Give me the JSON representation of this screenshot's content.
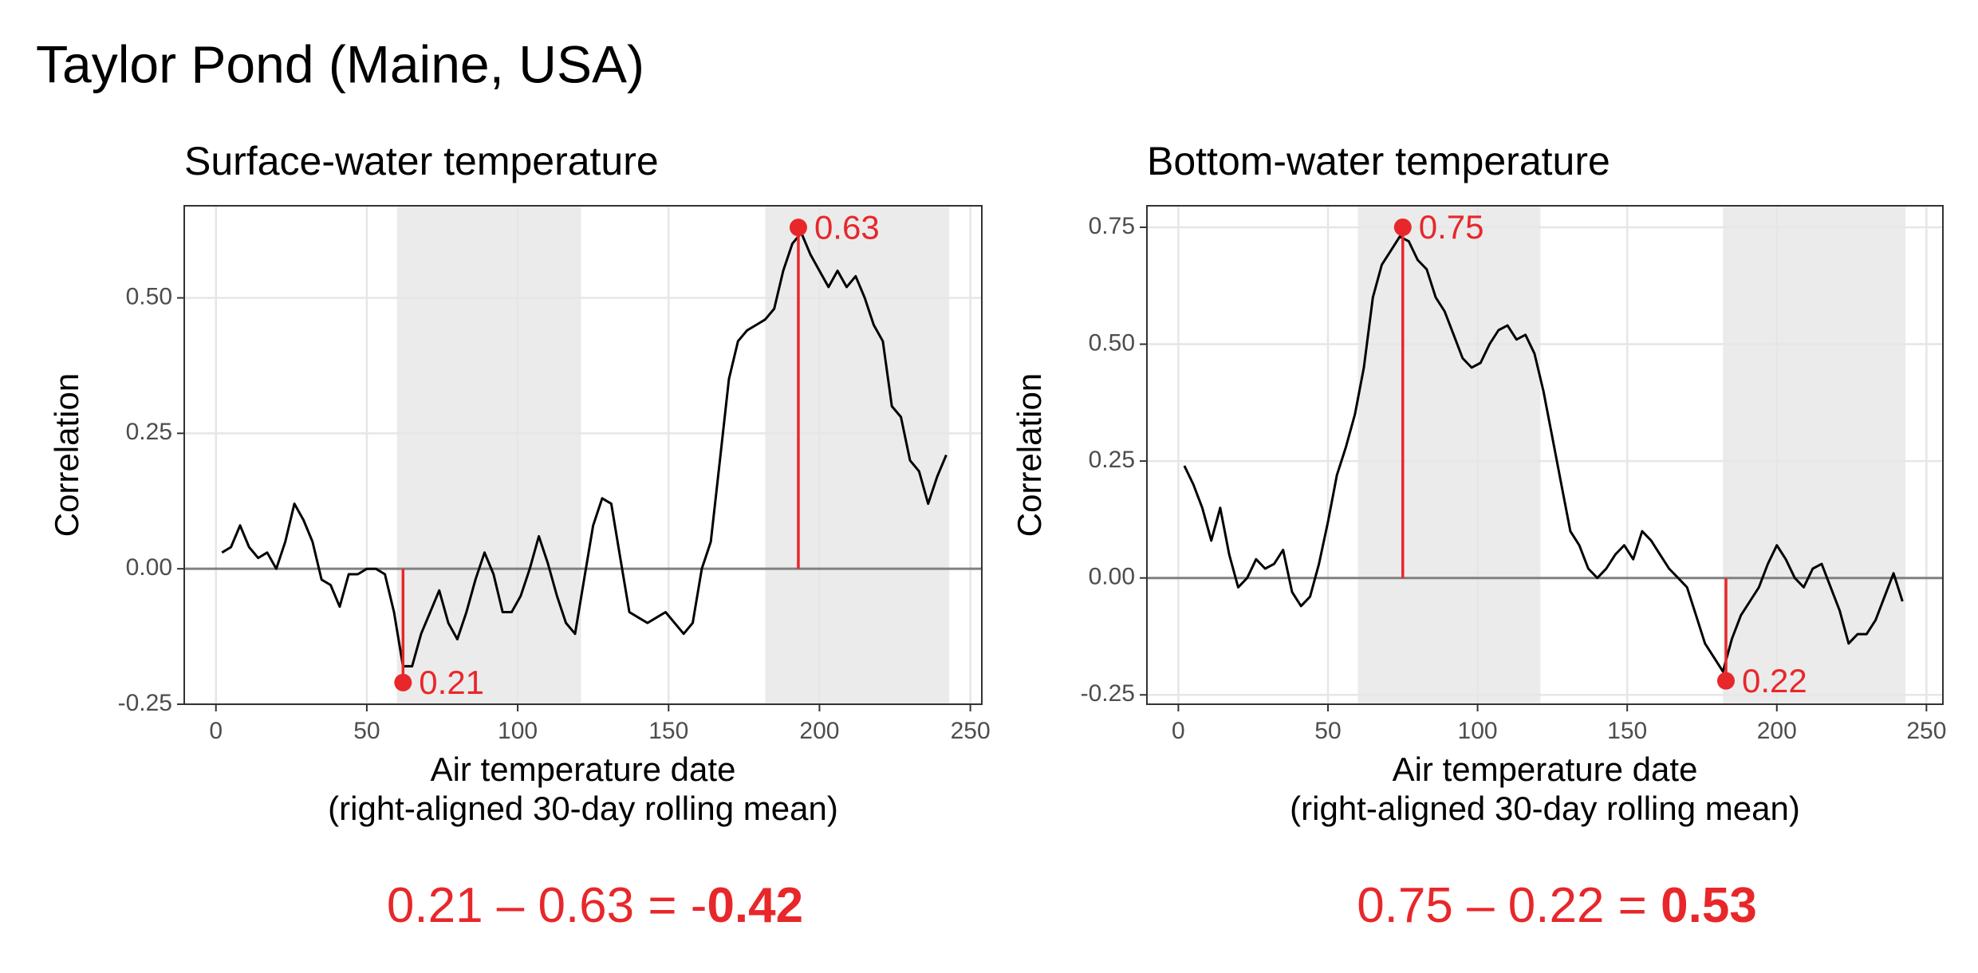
{
  "title": "Taylor Pond (Maine, USA)",
  "chart_data": [
    {
      "type": "line",
      "title": "Surface-water temperature",
      "xlabel": [
        "Air temperature date",
        "(right-aligned 30-day rolling mean)"
      ],
      "ylabel": "Correlation",
      "x": [
        2,
        5,
        8,
        11,
        14,
        17,
        20,
        23,
        26,
        29,
        32,
        35,
        38,
        41,
        44,
        47,
        50,
        53,
        56,
        59,
        62,
        65,
        68,
        71,
        74,
        77,
        80,
        83,
        86,
        89,
        92,
        95,
        98,
        101,
        104,
        107,
        110,
        113,
        116,
        119,
        122,
        125,
        128,
        131,
        134,
        137,
        140,
        143,
        146,
        149,
        152,
        155,
        158,
        161,
        164,
        167,
        170,
        173,
        176,
        179,
        182,
        185,
        188,
        191,
        194,
        197,
        200,
        203,
        206,
        209,
        212,
        215,
        218,
        221,
        224,
        227,
        230,
        233,
        236,
        239,
        242
      ],
      "values": [
        0.03,
        0.04,
        0.08,
        0.04,
        0.02,
        0.03,
        0.0,
        0.05,
        0.12,
        0.09,
        0.05,
        -0.02,
        -0.03,
        -0.07,
        -0.01,
        -0.01,
        0.0,
        0.0,
        -0.01,
        -0.08,
        -0.18,
        -0.18,
        -0.12,
        -0.08,
        -0.04,
        -0.1,
        -0.13,
        -0.08,
        -0.02,
        0.03,
        -0.01,
        -0.08,
        -0.08,
        -0.05,
        0.0,
        0.06,
        0.01,
        -0.05,
        -0.1,
        -0.12,
        -0.02,
        0.08,
        0.13,
        0.12,
        0.02,
        -0.08,
        -0.09,
        -0.1,
        -0.09,
        -0.08,
        -0.1,
        -0.12,
        -0.1,
        0.0,
        0.05,
        0.2,
        0.35,
        0.42,
        0.44,
        0.45,
        0.46,
        0.48,
        0.55,
        0.6,
        0.62,
        0.58,
        0.55,
        0.52,
        0.55,
        0.52,
        0.54,
        0.5,
        0.45,
        0.42,
        0.3,
        0.28,
        0.2,
        0.18,
        0.12,
        0.17,
        0.21
      ],
      "color": "#000000",
      "highlight_color": "#e8272a",
      "xlim": [
        -10.5,
        253.8
      ],
      "ylim": [
        -0.25,
        0.67
      ],
      "xticks": [
        0,
        50,
        100,
        150,
        200,
        250
      ],
      "yticks": [
        {
          "value": -0.25,
          "label": "-0.25"
        },
        {
          "value": 0,
          "label": "0.00"
        },
        {
          "value": 0.25,
          "label": "0.25"
        },
        {
          "value": 0.5,
          "label": "0.50"
        }
      ],
      "grid": true,
      "hline": 0,
      "shaded": [
        [
          60,
          121
        ],
        [
          182,
          243
        ]
      ],
      "highlights": [
        {
          "x": 62,
          "value": -0.21,
          "label": "0.21"
        },
        {
          "x": 193,
          "value": 0.63,
          "label": "0.63"
        }
      ],
      "equation": {
        "text": "0.21 – 0.63 = -",
        "result": "0.42"
      }
    },
    {
      "type": "line",
      "title": "Bottom-water temperature",
      "xlabel": [
        "Air temperature date",
        "(right-aligned 30-day rolling mean)"
      ],
      "ylabel": "Correlation",
      "x": [
        2,
        5,
        8,
        11,
        14,
        17,
        20,
        23,
        26,
        29,
        32,
        35,
        38,
        41,
        44,
        47,
        50,
        53,
        56,
        59,
        62,
        65,
        68,
        71,
        74,
        77,
        80,
        83,
        86,
        89,
        92,
        95,
        98,
        101,
        104,
        107,
        110,
        113,
        116,
        119,
        122,
        125,
        128,
        131,
        134,
        137,
        140,
        143,
        146,
        149,
        152,
        155,
        158,
        161,
        164,
        167,
        170,
        173,
        176,
        179,
        182,
        185,
        188,
        191,
        194,
        197,
        200,
        203,
        206,
        209,
        212,
        215,
        218,
        221,
        224,
        227,
        230,
        233,
        236,
        239,
        242
      ],
      "values": [
        0.24,
        0.2,
        0.15,
        0.08,
        0.15,
        0.05,
        -0.02,
        0.0,
        0.04,
        0.02,
        0.03,
        0.06,
        -0.03,
        -0.06,
        -0.04,
        0.03,
        0.12,
        0.22,
        0.28,
        0.35,
        0.45,
        0.6,
        0.67,
        0.7,
        0.73,
        0.72,
        0.68,
        0.66,
        0.6,
        0.57,
        0.52,
        0.47,
        0.45,
        0.46,
        0.5,
        0.53,
        0.54,
        0.51,
        0.52,
        0.48,
        0.4,
        0.3,
        0.2,
        0.1,
        0.07,
        0.02,
        0.0,
        0.02,
        0.05,
        0.07,
        0.04,
        0.1,
        0.08,
        0.05,
        0.02,
        0.0,
        -0.02,
        -0.08,
        -0.14,
        -0.17,
        -0.2,
        -0.13,
        -0.08,
        -0.05,
        -0.02,
        0.03,
        0.07,
        0.04,
        0.0,
        -0.02,
        0.02,
        0.03,
        -0.02,
        -0.07,
        -0.14,
        -0.12,
        -0.12,
        -0.09,
        -0.04,
        0.01,
        -0.05
      ],
      "color": "#000000",
      "highlight_color": "#e8272a",
      "xlim": [
        -10.5,
        255.5
      ],
      "ylim": [
        -0.27,
        0.796
      ],
      "xticks": [
        0,
        50,
        100,
        150,
        200,
        250
      ],
      "yticks": [
        {
          "value": -0.25,
          "label": "-0.25"
        },
        {
          "value": 0,
          "label": "0.00"
        },
        {
          "value": 0.25,
          "label": "0.25"
        },
        {
          "value": 0.5,
          "label": "0.50"
        },
        {
          "value": 0.75,
          "label": "0.75"
        }
      ],
      "grid": true,
      "hline": 0,
      "shaded": [
        [
          60,
          121
        ],
        [
          182,
          243
        ]
      ],
      "highlights": [
        {
          "x": 75,
          "value": 0.75,
          "label": "0.75"
        },
        {
          "x": 183,
          "value": -0.22,
          "label": "0.22"
        }
      ],
      "equation": {
        "text": "0.75 – 0.22 = ",
        "result": "0.53"
      }
    }
  ]
}
